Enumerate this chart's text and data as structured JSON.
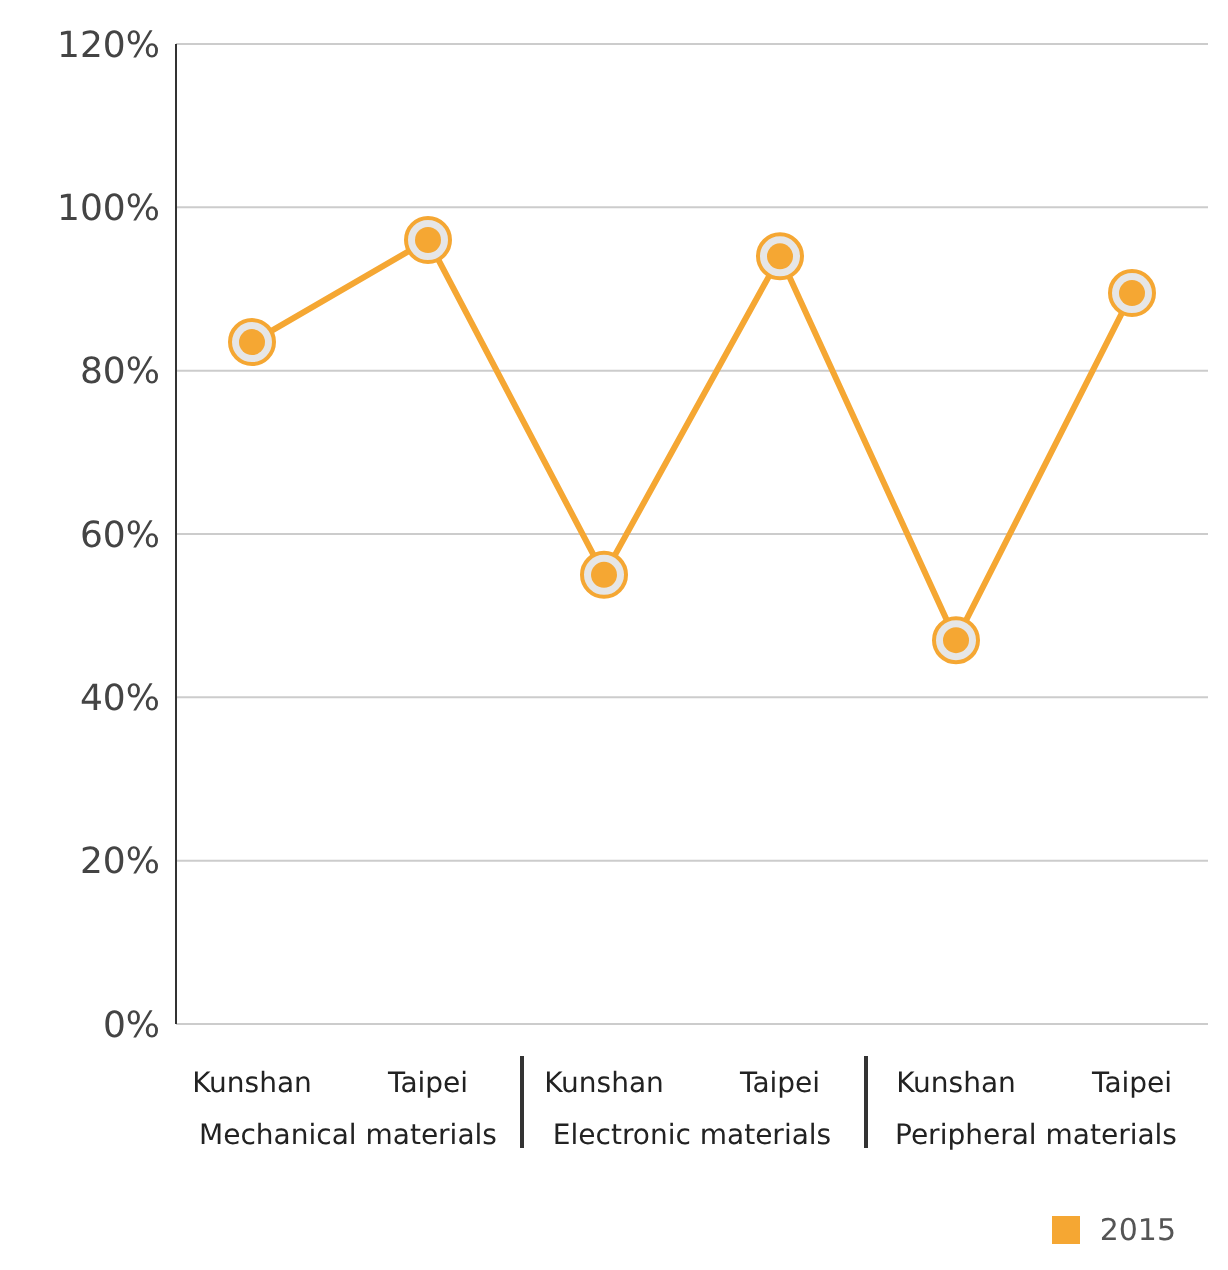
{
  "chart_data": {
    "type": "line",
    "categories": [
      "Kunshan",
      "Taipei",
      "Kunshan",
      "Taipei",
      "Kunshan",
      "Taipei"
    ],
    "series": [
      {
        "name": "2015",
        "color": "#f5a733",
        "values": [
          83.5,
          96,
          55,
          94,
          47,
          89.5
        ]
      }
    ],
    "ylim": [
      0,
      120
    ],
    "yticks": [
      {
        "value": 0,
        "label": "0%"
      },
      {
        "value": 20,
        "label": "20%"
      },
      {
        "value": 40,
        "label": "40%"
      },
      {
        "value": 60,
        "label": "60%"
      },
      {
        "value": 80,
        "label": "80%"
      },
      {
        "value": 100,
        "label": "100%"
      },
      {
        "value": 120,
        "label": "120%"
      }
    ],
    "annotations": [
      "Mechanical materials",
      "Electronic materials",
      "Peripheral materials"
    ],
    "grid": "y",
    "legend": "bottom right",
    "marker": "circle",
    "line_style": "solid"
  }
}
